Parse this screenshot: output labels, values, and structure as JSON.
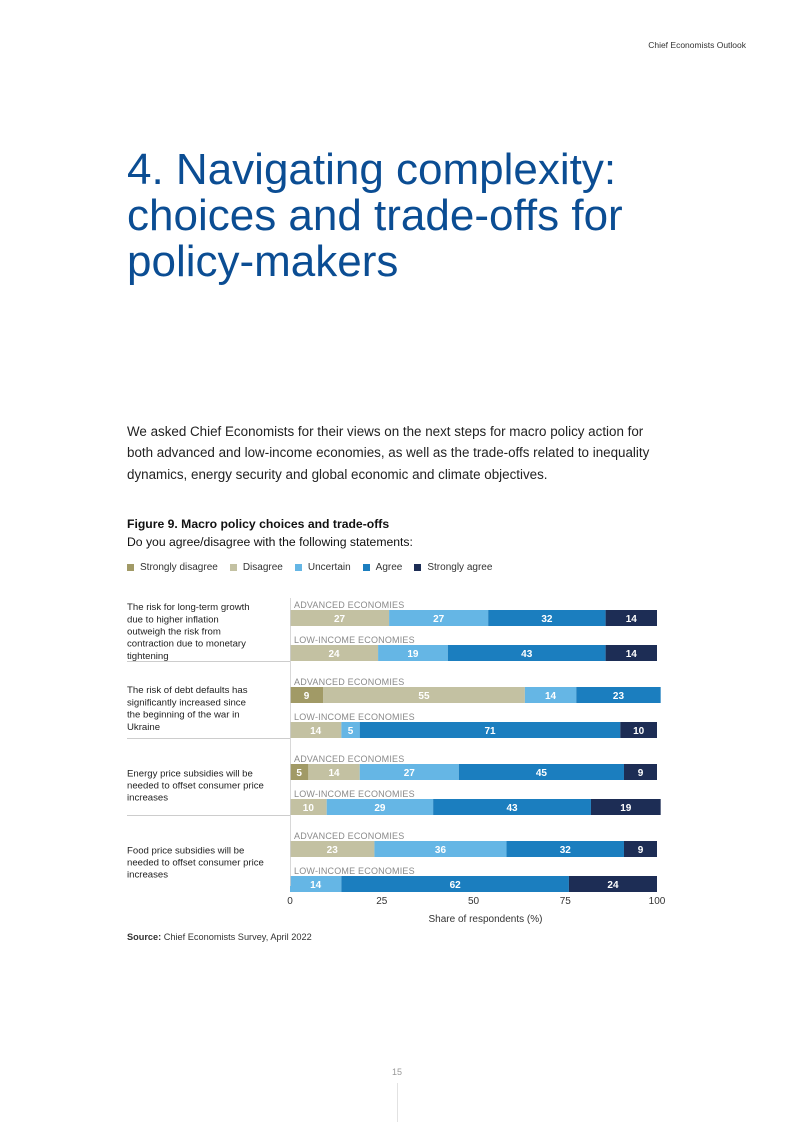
{
  "header": {
    "running_title": "Chief Economists Outlook"
  },
  "section_title": "4. Navigating complexity: choices and trade-offs for policy-makers",
  "intro": "We asked Chief Economists for their views on the next steps for macro policy action for both advanced and low-income economies, as well as the trade-offs related to inequality dynamics, energy security and global economic and climate objectives.",
  "figure": {
    "title": "Figure 9. Macro policy choices and trade-offs",
    "subtitle": "Do you agree/disagree with the following statements:",
    "source_label": "Source:",
    "source_text": " Chief Economists Survey, April 2022"
  },
  "chart_data": {
    "type": "bar",
    "orientation": "horizontal",
    "stacked": true,
    "xlabel": "Share of respondents (%)",
    "xlim": [
      0,
      100
    ],
    "xticks": [
      0,
      25,
      50,
      75,
      100
    ],
    "legend": [
      {
        "name": "Strongly disagree",
        "color": "#a19a66"
      },
      {
        "name": "Disagree",
        "color": "#c3c1a2"
      },
      {
        "name": "Uncertain",
        "color": "#65b6e5"
      },
      {
        "name": "Agree",
        "color": "#1b7ebf"
      },
      {
        "name": "Strongly agree",
        "color": "#1d2d55"
      }
    ],
    "groups": [
      {
        "statement": "The risk for long-term growth due to higher inflation outweigh the risk from contraction due to monetary tightening",
        "bars": [
          {
            "label": "ADVANCED ECONOMIES",
            "values": [
              0,
              27,
              27,
              32,
              14
            ]
          },
          {
            "label": "LOW-INCOME ECONOMIES",
            "values": [
              0,
              24,
              19,
              43,
              14
            ]
          }
        ]
      },
      {
        "statement": "The risk of debt defaults has significantly increased since the beginning of the war in Ukraine",
        "bars": [
          {
            "label": "ADVANCED ECONOMIES",
            "values": [
              9,
              55,
              14,
              23,
              0
            ]
          },
          {
            "label": "LOW-INCOME ECONOMIES",
            "values": [
              0,
              14,
              5,
              71,
              10
            ]
          }
        ]
      },
      {
        "statement": "Energy price subsidies will be needed to offset consumer price increases",
        "bars": [
          {
            "label": "ADVANCED ECONOMIES",
            "values": [
              5,
              14,
              27,
              45,
              9
            ]
          },
          {
            "label": "LOW-INCOME ECONOMIES",
            "values": [
              0,
              10,
              29,
              43,
              19
            ]
          }
        ]
      },
      {
        "statement": "Food price subsidies will be needed to offset consumer price increases",
        "bars": [
          {
            "label": "ADVANCED ECONOMIES",
            "values": [
              0,
              23,
              36,
              32,
              9
            ]
          },
          {
            "label": "LOW-INCOME ECONOMIES",
            "values": [
              0,
              0,
              14,
              62,
              24
            ]
          }
        ]
      }
    ]
  },
  "page_number": "15"
}
